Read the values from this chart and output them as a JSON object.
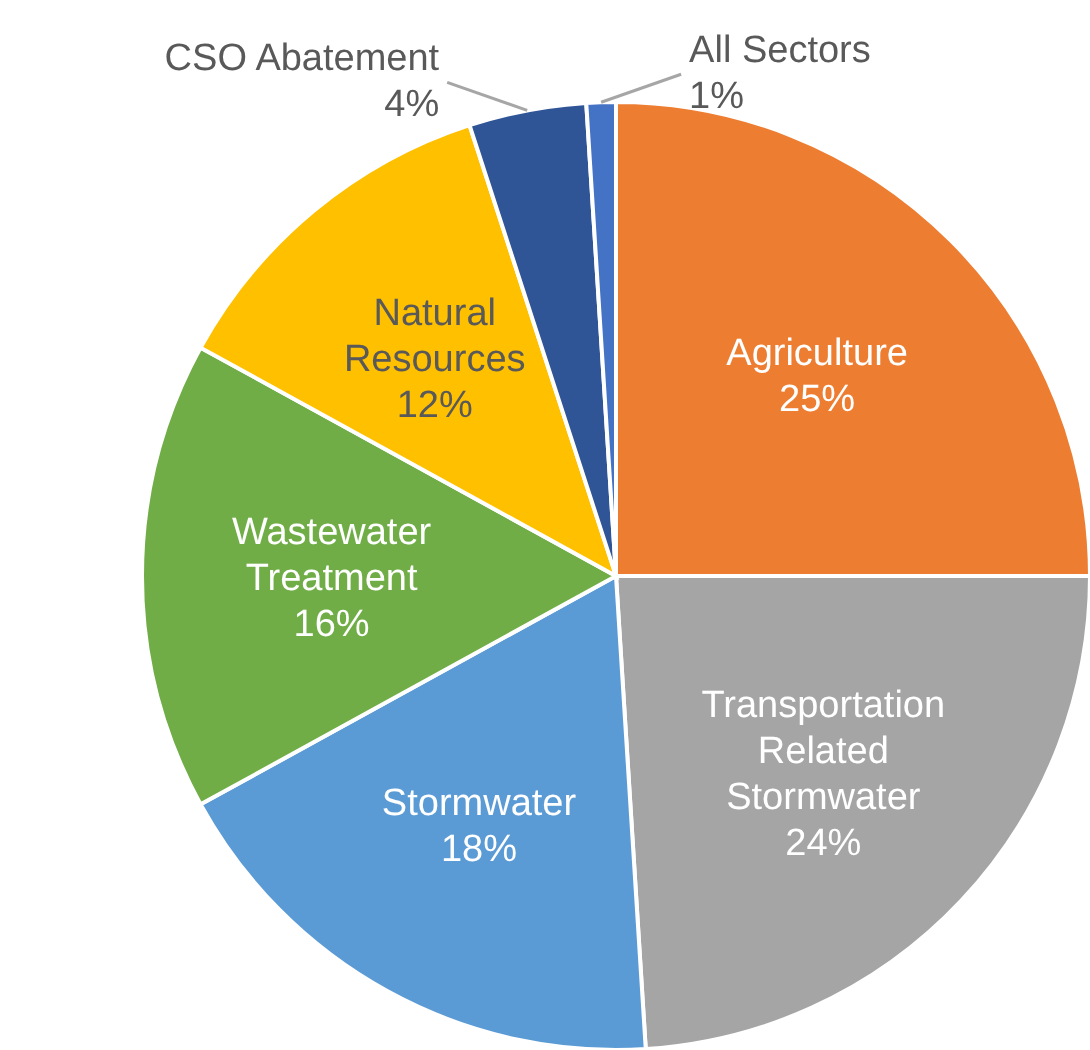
{
  "chart_data": {
    "type": "pie",
    "categories": [
      "Agriculture",
      "Transportation Related Stormwater",
      "Stormwater",
      "Wastewater Treatment",
      "Natural Resources",
      "CSO Abatement",
      "All Sectors"
    ],
    "values": [
      25,
      24,
      18,
      16,
      12,
      4,
      1
    ],
    "value_labels": [
      "25%",
      "24%",
      "18%",
      "16%",
      "12%",
      "4%",
      "1%"
    ],
    "colors": [
      "#ed7d31",
      "#a5a5a5",
      "#5b9bd5",
      "#70ad47",
      "#ffc000",
      "#2f5597",
      "#4472c4"
    ]
  }
}
